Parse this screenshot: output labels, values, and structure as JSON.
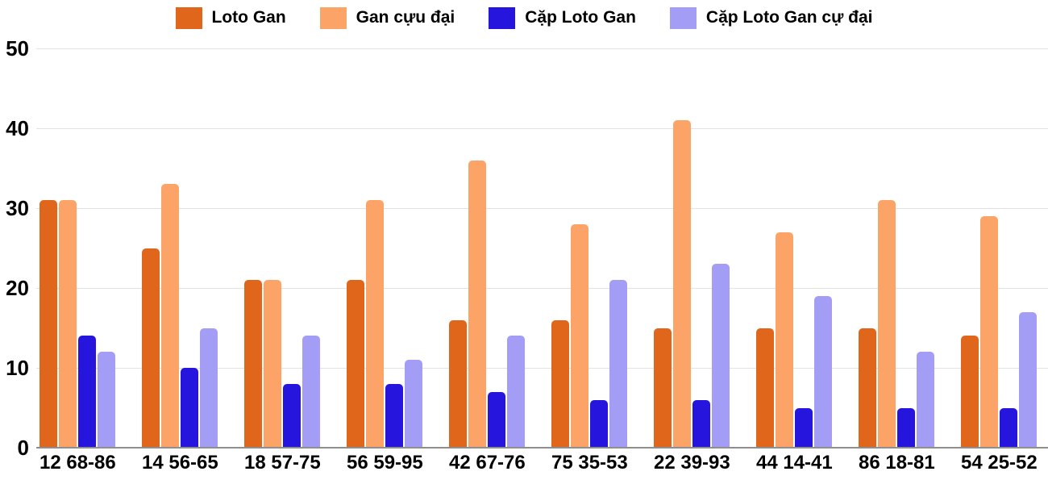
{
  "chart_data": {
    "type": "bar",
    "title": "",
    "categories": [
      "12 68-86",
      "14 56-65",
      "18 57-75",
      "56 59-95",
      "42 67-76",
      "75 35-53",
      "22 39-93",
      "44 14-41",
      "86 18-81",
      "54 25-52"
    ],
    "series": [
      {
        "name": "Loto Gan",
        "color": "#E0661C",
        "values": [
          31,
          25,
          21,
          21,
          16,
          16,
          15,
          15,
          15,
          14
        ]
      },
      {
        "name": "Gan cựu đại",
        "color": "#FCA468",
        "values": [
          31,
          33,
          21,
          31,
          36,
          28,
          41,
          27,
          31,
          29
        ]
      },
      {
        "name": "Cặp Loto Gan",
        "color": "#2615DD",
        "values": [
          14,
          10,
          8,
          8,
          7,
          6,
          6,
          5,
          5,
          5
        ]
      },
      {
        "name": "Cặp Loto Gan cự đại",
        "color": "#A49DF5",
        "values": [
          12,
          15,
          14,
          11,
          14,
          21,
          23,
          19,
          12,
          17
        ]
      }
    ],
    "xlabel": "",
    "ylabel": "",
    "ylim": [
      0,
      50
    ],
    "yticks": [
      0,
      10,
      20,
      30,
      40,
      50
    ],
    "grid": true,
    "legend_position": "top"
  },
  "colors": {
    "background": "#FFFFFF",
    "gridline": "#E2E2E2",
    "baseline": "#8E8E8E",
    "text": "#000000"
  }
}
